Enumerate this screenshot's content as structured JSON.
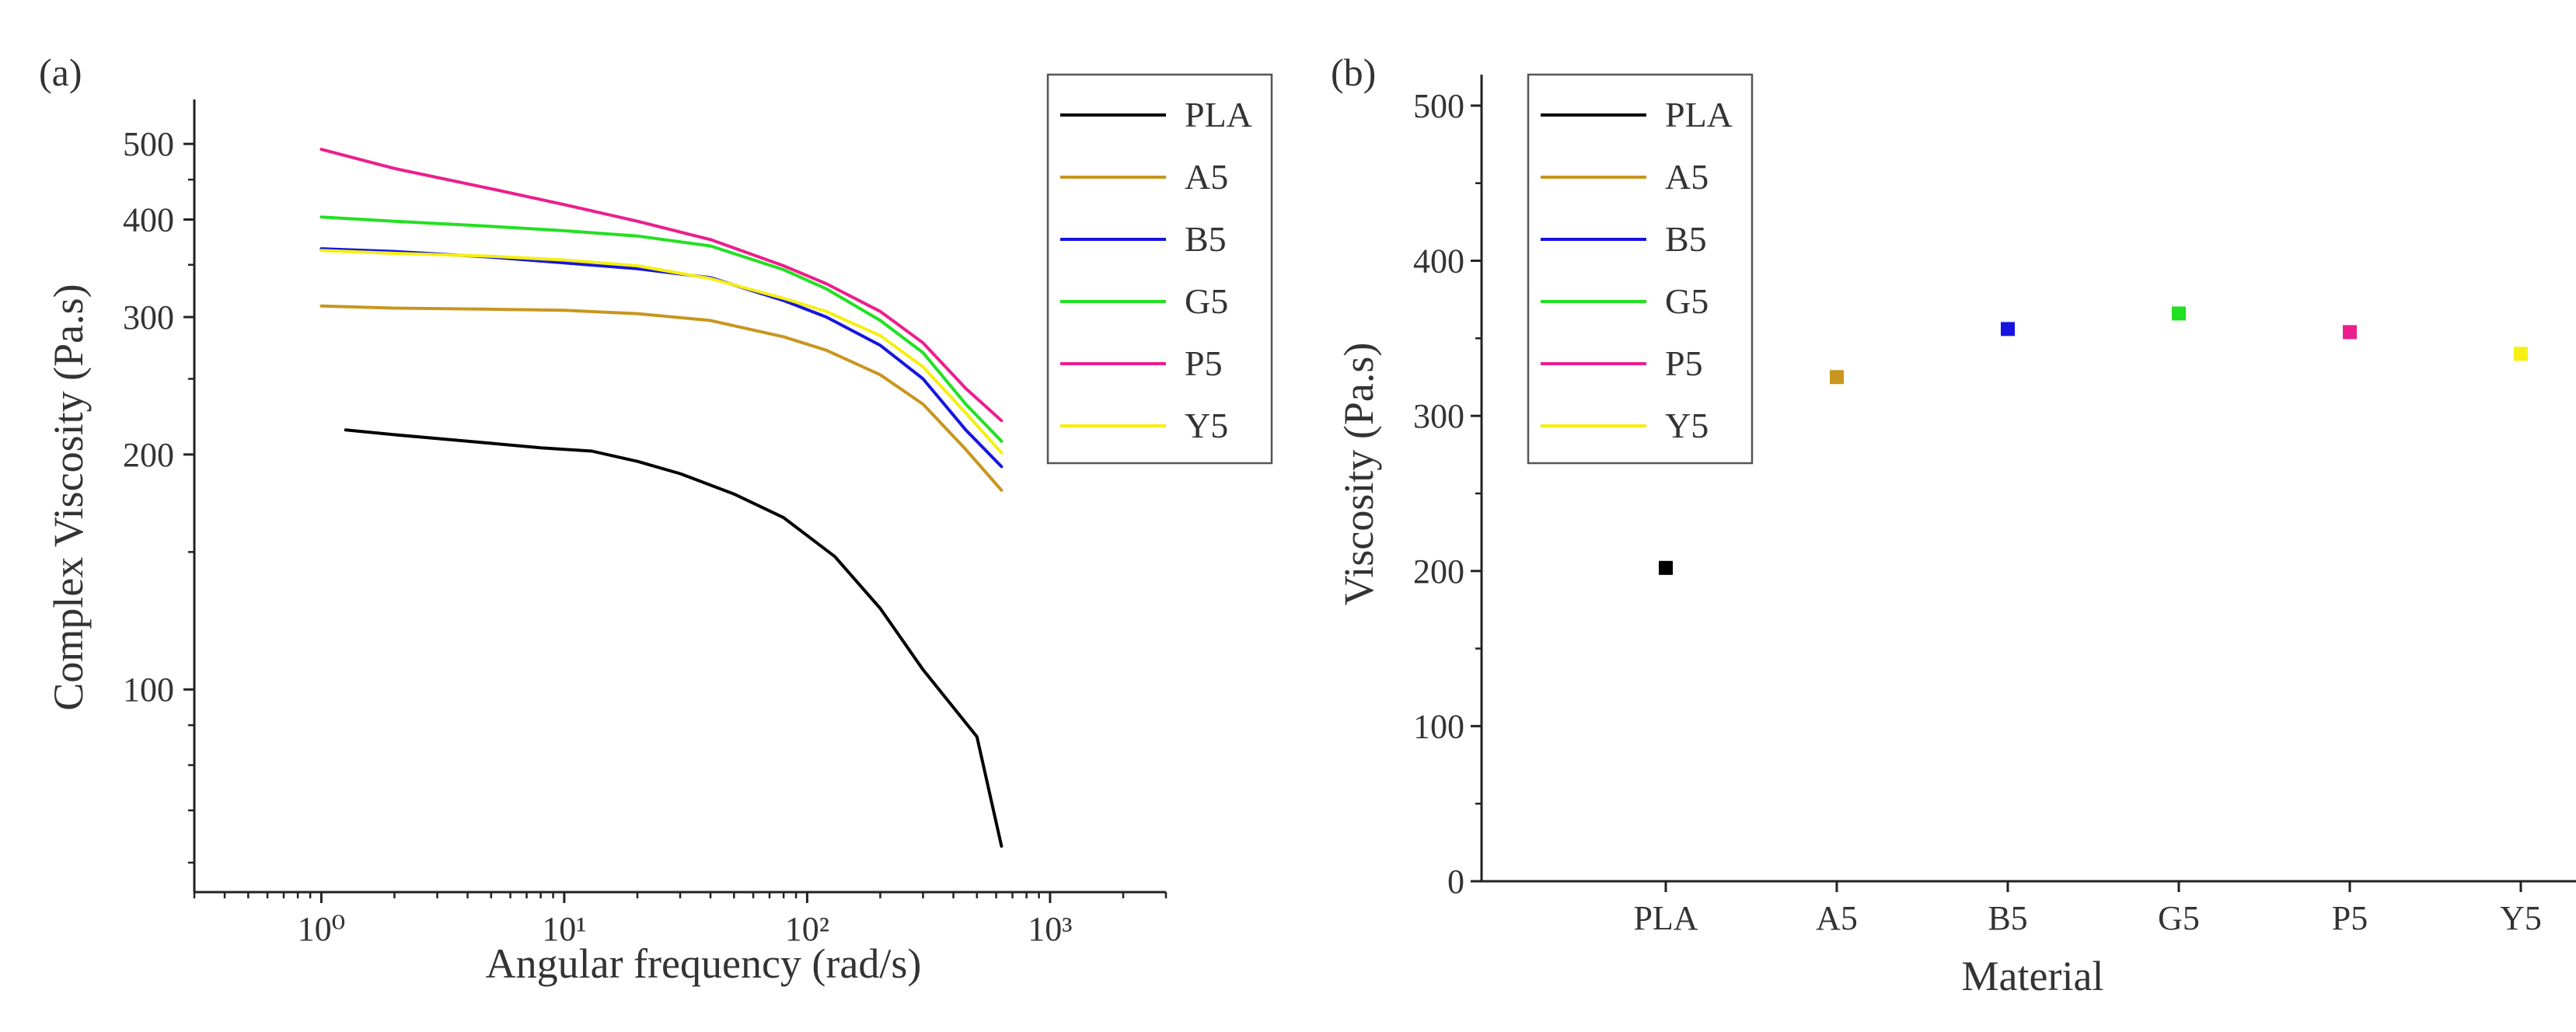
{
  "chart_data": [
    {
      "panel_label": "(a)",
      "type": "line",
      "title": "",
      "xlabel": "Angular frequency (rad/s)",
      "ylabel": "Complex Viscosity (Pa.s)",
      "xscale": "log",
      "yscale": "log",
      "xlim": [
        0.3,
        3000
      ],
      "ylim": [
        55,
        570
      ],
      "x_ticks": [
        1,
        10,
        100,
        1000
      ],
      "x_tick_labels": [
        "10⁰",
        "10¹",
        "10²",
        "10³"
      ],
      "y_ticks": [
        100,
        200,
        300,
        400,
        500
      ],
      "y_tick_labels": [
        "100",
        "200",
        "300",
        "400",
        "500"
      ],
      "grid": false,
      "legend_position": "top-right",
      "series": [
        {
          "name": "PLA",
          "color": "#000000",
          "x": [
            1.26,
            2,
            4,
            8,
            13,
            20,
            30,
            50,
            80,
            130,
            200,
            300,
            500,
            631
          ],
          "y": [
            215,
            212,
            208,
            204,
            202,
            196,
            189,
            178,
            166,
            148,
            127,
            106,
            87,
            63
          ]
        },
        {
          "name": "A5",
          "color": "#c8961e",
          "x": [
            1,
            2,
            5,
            10,
            20,
            40,
            80,
            120,
            200,
            300,
            450,
            631
          ],
          "y": [
            310,
            308,
            307,
            306,
            303,
            297,
            283,
            272,
            253,
            232,
            203,
            180
          ]
        },
        {
          "name": "B5",
          "color": "#1515e0",
          "x": [
            1,
            2,
            5,
            10,
            20,
            40,
            80,
            120,
            200,
            300,
            450,
            631
          ],
          "y": [
            367,
            364,
            358,
            352,
            346,
            337,
            315,
            300,
            276,
            250,
            215,
            193
          ]
        },
        {
          "name": "G5",
          "color": "#22e022",
          "x": [
            1,
            2,
            5,
            10,
            20,
            40,
            80,
            120,
            200,
            300,
            450,
            631
          ],
          "y": [
            403,
            398,
            392,
            387,
            381,
            370,
            345,
            326,
            297,
            270,
            232,
            208
          ]
        },
        {
          "name": "P5",
          "color": "#ec1e8c",
          "x": [
            1,
            2,
            5,
            10,
            20,
            40,
            80,
            120,
            200,
            300,
            450,
            631
          ],
          "y": [
            492,
            465,
            438,
            418,
            398,
            377,
            349,
            331,
            305,
            278,
            243,
            221
          ]
        },
        {
          "name": "Y5",
          "color": "#f5ef12",
          "x": [
            1,
            2,
            5,
            10,
            20,
            40,
            80,
            120,
            200,
            300,
            450,
            631
          ],
          "y": [
            365,
            362,
            359,
            355,
            349,
            336,
            317,
            305,
            284,
            259,
            226,
            201
          ]
        }
      ]
    },
    {
      "panel_label": "(b)",
      "type": "scatter",
      "title": "",
      "xlabel": "Material",
      "ylabel": "Viscosity (Pa.s)",
      "categories": [
        "PLA",
        "A5",
        "B5",
        "G5",
        "P5",
        "Y5"
      ],
      "ylim": [
        0,
        520
      ],
      "y_ticks": [
        0,
        100,
        200,
        300,
        400,
        500
      ],
      "y_tick_labels": [
        "0",
        "100",
        "200",
        "300",
        "400",
        "500"
      ],
      "grid": false,
      "legend_position": "top-left",
      "series": [
        {
          "name": "PLA",
          "color": "#000000",
          "category": "PLA",
          "value": 202
        },
        {
          "name": "A5",
          "color": "#c8961e",
          "category": "A5",
          "value": 325
        },
        {
          "name": "B5",
          "color": "#1515e0",
          "category": "B5",
          "value": 356
        },
        {
          "name": "G5",
          "color": "#22e022",
          "category": "G5",
          "value": 366
        },
        {
          "name": "P5",
          "color": "#ec1e8c",
          "category": "P5",
          "value": 354
        },
        {
          "name": "Y5",
          "color": "#f5ef12",
          "category": "Y5",
          "value": 340
        }
      ]
    }
  ]
}
